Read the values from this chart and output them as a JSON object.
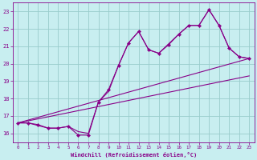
{
  "xlabel": "Windchill (Refroidissement éolien,°C)",
  "xlim": [
    -0.5,
    23.5
  ],
  "ylim": [
    15.5,
    23.5
  ],
  "xticks": [
    0,
    1,
    2,
    3,
    4,
    5,
    6,
    7,
    8,
    9,
    10,
    11,
    12,
    13,
    14,
    15,
    16,
    17,
    18,
    19,
    20,
    21,
    22,
    23
  ],
  "yticks": [
    16,
    17,
    18,
    19,
    20,
    21,
    22,
    23
  ],
  "bg_color": "#c8eef0",
  "line_color": "#880088",
  "grid_color": "#99cccc",
  "line1_x": [
    0,
    1,
    2,
    3,
    4,
    5,
    6,
    7,
    8,
    9,
    10,
    11,
    12,
    13,
    14,
    15,
    16,
    17,
    18,
    19,
    20,
    21,
    22,
    23
  ],
  "line1_y": [
    16.6,
    16.6,
    16.5,
    16.3,
    16.3,
    16.4,
    15.9,
    15.9,
    17.8,
    18.5,
    19.9,
    21.2,
    21.85,
    20.8,
    20.6,
    21.1,
    21.7,
    22.2,
    22.2,
    23.1,
    22.2,
    20.9,
    20.4,
    20.3
  ],
  "line2_x": [
    0,
    1,
    2,
    3,
    4,
    5,
    6,
    7,
    8,
    9,
    10,
    11,
    12,
    13,
    14,
    15,
    16,
    17,
    18,
    19,
    20,
    21,
    22,
    23
  ],
  "line2_y": [
    16.6,
    16.6,
    16.45,
    16.3,
    16.3,
    16.4,
    16.1,
    16.0,
    17.8,
    18.4,
    19.9,
    21.2,
    21.85,
    20.8,
    20.6,
    21.15,
    21.7,
    22.2,
    22.2,
    23.1,
    22.2,
    20.9,
    20.4,
    20.3
  ],
  "line3_x": [
    0,
    23
  ],
  "line3_y": [
    16.6,
    20.3
  ],
  "line4_x": [
    0,
    23
  ],
  "line4_y": [
    16.6,
    19.3
  ]
}
